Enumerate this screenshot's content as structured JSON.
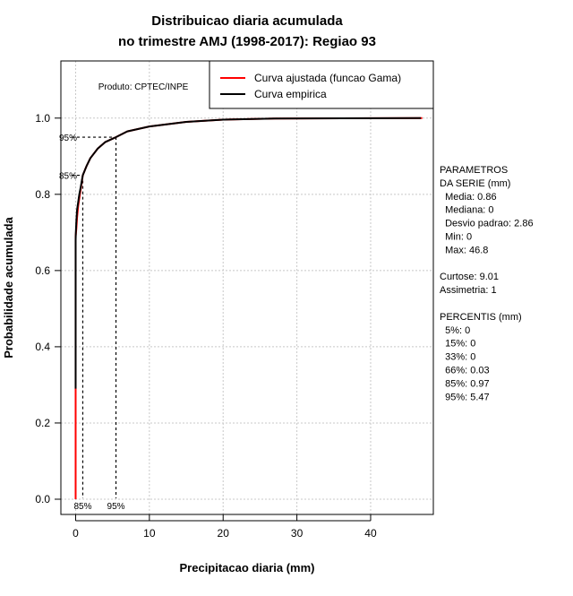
{
  "chart_data": {
    "type": "line",
    "title": [
      "Distribuicao diaria acumulada",
      "no trimestre AMJ (1998-2017): Regiao 93"
    ],
    "xlabel": "Precipitacao diaria (mm)",
    "ylabel": "Probabilidade acumulada",
    "xlim": [
      -2,
      48.5
    ],
    "ylim": [
      -0.04,
      1.15
    ],
    "xticks": [
      0,
      10,
      20,
      30,
      40
    ],
    "yticks": [
      0.0,
      0.2,
      0.4,
      0.6,
      0.8,
      1.0
    ],
    "ytick_labels": [
      "0.0",
      "0.2",
      "0.4",
      "0.6",
      "0.8",
      "1.0"
    ],
    "grid": true,
    "legend_position": "top-right",
    "producer_label": "Produto: CPTEC/INPE",
    "series": [
      {
        "name": "Curva ajustada (funcao Gama)",
        "color": "#ff0000",
        "points": [
          [
            0.0,
            0.0
          ],
          [
            0.0,
            0.69
          ],
          [
            0.1,
            0.71
          ],
          [
            0.2,
            0.74
          ],
          [
            0.35,
            0.77
          ],
          [
            0.5,
            0.79
          ],
          [
            0.7,
            0.815
          ],
          [
            0.97,
            0.85
          ],
          [
            1.5,
            0.875
          ],
          [
            2.0,
            0.895
          ],
          [
            3.0,
            0.92
          ],
          [
            4.0,
            0.937
          ],
          [
            5.47,
            0.95
          ],
          [
            7.0,
            0.965
          ],
          [
            10.0,
            0.978
          ],
          [
            15.0,
            0.99
          ],
          [
            20.0,
            0.996
          ],
          [
            27.0,
            0.999
          ],
          [
            47.0,
            1.0
          ]
        ]
      },
      {
        "name": "Curva empirica",
        "color": "#000000",
        "points": [
          [
            0.0,
            0.29
          ],
          [
            0.0,
            0.68
          ],
          [
            0.03,
            0.7
          ],
          [
            0.1,
            0.73
          ],
          [
            0.2,
            0.76
          ],
          [
            0.35,
            0.78
          ],
          [
            0.5,
            0.8
          ],
          [
            0.7,
            0.82
          ],
          [
            0.97,
            0.85
          ],
          [
            1.5,
            0.875
          ],
          [
            2.0,
            0.895
          ],
          [
            3.0,
            0.92
          ],
          [
            4.0,
            0.937
          ],
          [
            5.47,
            0.95
          ],
          [
            7.0,
            0.965
          ],
          [
            10.0,
            0.978
          ],
          [
            15.0,
            0.99
          ],
          [
            20.0,
            0.996
          ],
          [
            27.0,
            0.999
          ],
          [
            46.8,
            1.0
          ]
        ]
      }
    ],
    "percentile_markers": [
      {
        "label": "85%",
        "x": 0.97,
        "y": 0.85
      },
      {
        "label": "95%",
        "x": 5.47,
        "y": 0.95
      }
    ]
  },
  "stats_panel": {
    "lines": [
      "PARAMETROS",
      "DA SERIE (mm)",
      "  Media: 0.86",
      "  Mediana: 0",
      "  Desvio padrao: 2.86",
      "  Min: 0",
      "  Max: 46.8",
      "",
      "Curtose: 9.01",
      "Assimetria: 1",
      "",
      "PERCENTIS (mm)",
      "  5%: 0",
      "  15%: 0",
      "  33%: 0",
      "  66%: 0.03",
      "  85%: 0.97",
      "  95%: 5.47"
    ]
  }
}
